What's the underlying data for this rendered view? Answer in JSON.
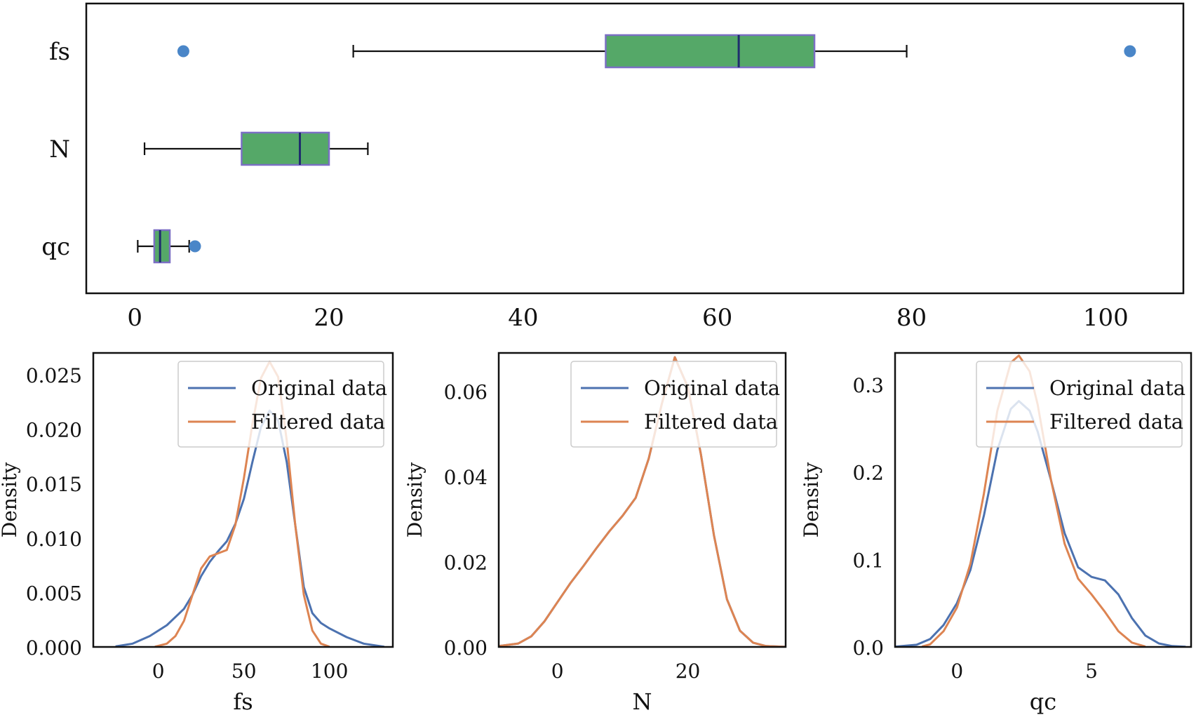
{
  "chart_data": [
    {
      "type": "box",
      "orientation": "horizontal",
      "xlim": [
        -5,
        108
      ],
      "xticks": [
        0,
        20,
        40,
        60,
        80,
        100
      ],
      "colors": {
        "box_fill": "#55a868",
        "box_edge": "#7b6fc4",
        "median": "#1f2d6e",
        "flier": "#4a86c8",
        "whisker": "#111111"
      },
      "series": [
        {
          "name": "fs",
          "whislo": 22.5,
          "q1": 48.5,
          "med": 62.2,
          "q3": 70,
          "whishi": 79.5,
          "fliers": [
            5,
            102.5
          ]
        },
        {
          "name": "N",
          "whislo": 1,
          "q1": 11,
          "med": 17,
          "q3": 20,
          "whishi": 24,
          "fliers": []
        },
        {
          "name": "qc",
          "whislo": 0.3,
          "q1": 2,
          "med": 2.6,
          "q3": 3.6,
          "whishi": 5.6,
          "fliers": [
            6.2
          ]
        }
      ]
    },
    {
      "type": "line",
      "subtype": "kde",
      "xlabel": "fs",
      "ylabel": "Density",
      "xlim": [
        -38,
        137
      ],
      "ylim": [
        0,
        0.027
      ],
      "xticks": [
        0,
        50,
        100
      ],
      "yticks": [
        0.0,
        0.005,
        0.01,
        0.015,
        0.02,
        0.025
      ],
      "yticklabels": [
        "0.000",
        "0.005",
        "0.010",
        "0.015",
        "0.020",
        "0.025"
      ],
      "legend": "top-right",
      "series": [
        {
          "name": "Original data",
          "color": "#4c72b0",
          "x": [
            -25,
            -15,
            -5,
            5,
            15,
            20,
            25,
            30,
            35,
            40,
            45,
            50,
            55,
            60,
            65,
            70,
            75,
            80,
            85,
            90,
            95,
            100,
            110,
            120,
            132
          ],
          "y": [
            5e-05,
            0.0003,
            0.001,
            0.002,
            0.0035,
            0.0048,
            0.0065,
            0.0078,
            0.0088,
            0.0097,
            0.0113,
            0.0136,
            0.017,
            0.0202,
            0.0217,
            0.0208,
            0.017,
            0.0112,
            0.0055,
            0.0031,
            0.0022,
            0.0017,
            0.0009,
            0.0003,
            2e-05
          ]
        },
        {
          "name": "Filtered data",
          "color": "#dd8452",
          "x": [
            -2,
            5,
            10,
            15,
            20,
            25,
            30,
            35,
            40,
            45,
            50,
            55,
            60,
            65,
            70,
            75,
            80,
            85,
            90,
            95,
            100
          ],
          "y": [
            2e-05,
            0.0003,
            0.001,
            0.0024,
            0.0048,
            0.0072,
            0.0083,
            0.0086,
            0.0089,
            0.0112,
            0.0155,
            0.0205,
            0.0247,
            0.0262,
            0.0248,
            0.019,
            0.0112,
            0.0048,
            0.0015,
            0.0003,
            2e-05
          ]
        }
      ]
    },
    {
      "type": "line",
      "subtype": "kde",
      "xlabel": "N",
      "ylabel": "Density",
      "xlim": [
        -9,
        35
      ],
      "ylim": [
        0,
        0.069
      ],
      "xticks": [
        0,
        20
      ],
      "yticks": [
        0.0,
        0.02,
        0.04,
        0.06
      ],
      "yticklabels": [
        "0.00",
        "0.02",
        "0.04",
        "0.06"
      ],
      "legend": "top-right",
      "series": [
        {
          "name": "Original data",
          "color": "#4c72b0",
          "x": [
            -9,
            -6,
            -4,
            -2,
            0,
            2,
            4,
            6,
            8,
            10,
            12,
            14,
            16,
            18,
            20,
            22,
            24,
            26,
            28,
            30,
            32,
            35
          ],
          "y": [
            0.0002,
            0.0008,
            0.0025,
            0.006,
            0.0105,
            0.015,
            0.019,
            0.0232,
            0.0272,
            0.0308,
            0.035,
            0.0442,
            0.057,
            0.068,
            0.061,
            0.0452,
            0.0262,
            0.0112,
            0.0038,
            0.001,
            0.0002,
            1e-05
          ]
        },
        {
          "name": "Filtered data",
          "color": "#dd8452",
          "x": [
            -9,
            -6,
            -4,
            -2,
            0,
            2,
            4,
            6,
            8,
            10,
            12,
            14,
            16,
            18,
            20,
            22,
            24,
            26,
            28,
            30,
            32,
            35
          ],
          "y": [
            0.0002,
            0.0008,
            0.0025,
            0.006,
            0.0105,
            0.015,
            0.019,
            0.0232,
            0.0272,
            0.0308,
            0.035,
            0.0442,
            0.057,
            0.068,
            0.061,
            0.0452,
            0.0262,
            0.0112,
            0.0038,
            0.001,
            0.0002,
            1e-05
          ]
        }
      ]
    },
    {
      "type": "line",
      "subtype": "kde",
      "xlabel": "qc",
      "ylabel": "Density",
      "xlim": [
        -2.3,
        8.7
      ],
      "ylim": [
        0,
        0.336
      ],
      "xticks": [
        0,
        5
      ],
      "yticks": [
        0.0,
        0.1,
        0.2,
        0.3
      ],
      "yticklabels": [
        "0.0",
        "0.1",
        "0.2",
        "0.3"
      ],
      "legend": "top-right",
      "series": [
        {
          "name": "Original data",
          "color": "#4c72b0",
          "x": [
            -2.3,
            -1.5,
            -1,
            -0.5,
            0,
            0.5,
            1,
            1.5,
            2,
            2.3,
            2.7,
            3,
            3.5,
            4,
            4.5,
            5,
            5.5,
            6,
            6.5,
            7,
            7.5,
            8,
            8.5
          ],
          "y": [
            0.0003,
            0.0025,
            0.009,
            0.025,
            0.05,
            0.088,
            0.15,
            0.225,
            0.272,
            0.281,
            0.27,
            0.246,
            0.19,
            0.13,
            0.091,
            0.08,
            0.076,
            0.06,
            0.033,
            0.013,
            0.004,
            0.001,
            0.0002
          ]
        },
        {
          "name": "Filtered data",
          "color": "#dd8452",
          "x": [
            -1.3,
            -1,
            -0.5,
            0,
            0.5,
            1,
            1.5,
            2,
            2.3,
            2.7,
            3,
            3.5,
            4,
            4.5,
            5,
            5.5,
            6,
            6.5,
            7
          ],
          "y": [
            0.0005,
            0.003,
            0.018,
            0.045,
            0.095,
            0.175,
            0.27,
            0.325,
            0.333,
            0.315,
            0.277,
            0.19,
            0.118,
            0.078,
            0.06,
            0.04,
            0.018,
            0.005,
            0.0005
          ]
        }
      ]
    }
  ]
}
